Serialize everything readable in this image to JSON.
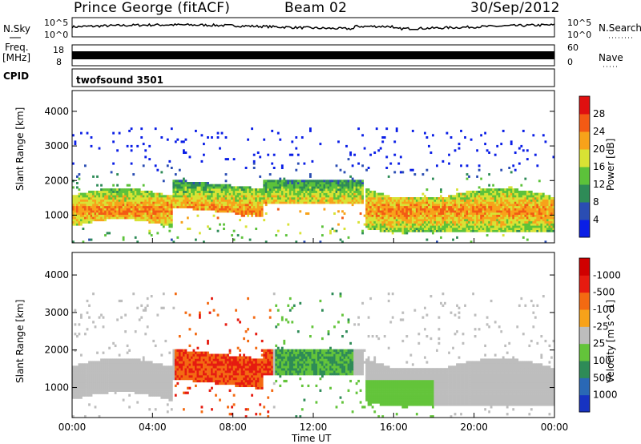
{
  "header": {
    "station": "Prince George (fitACF)",
    "beam": "Beam 02",
    "date": "30/Sep/2012"
  },
  "top_panels": {
    "nsky_label": "N.Sky",
    "nsearch_label": "N.Search",
    "nave_label": "Nave",
    "freq_label_1": "Freq.",
    "freq_label_2": "[MHz]",
    "cpid_label": "CPID",
    "cpid_value": "twofsound 3501",
    "nsky_ticks": [
      "10^5",
      "10^0"
    ],
    "nsearch_ticks": [
      "10^5",
      "10^0"
    ],
    "freq_ticks": [
      "18",
      "8"
    ],
    "nave_ticks": [
      "60",
      "0"
    ]
  },
  "chart_data": [
    {
      "type": "heatmap",
      "title": "",
      "ylabel": "Slant Range [km]",
      "xlabel": "",
      "x_ticks": [
        "00:00",
        "04:00",
        "08:00",
        "12:00",
        "16:00",
        "20:00",
        "00:00"
      ],
      "y_ticks": [
        1000,
        2000,
        3000,
        4000
      ],
      "ylim": [
        200,
        4600
      ],
      "xlim_hours": [
        0,
        24
      ],
      "colorbar": {
        "label": "Power [dB]",
        "ticks": [
          4,
          8,
          12,
          16,
          20,
          24,
          28
        ],
        "colors": [
          "#0a1ee6",
          "#2a4db3",
          "#2e8b57",
          "#5cc23a",
          "#d8e234",
          "#f7a21a",
          "#f35a14",
          "#e01010"
        ]
      }
    },
    {
      "type": "heatmap",
      "title": "",
      "ylabel": "Slant Range [km]",
      "xlabel": "Time UT",
      "x_ticks": [
        "00:00",
        "04:00",
        "08:00",
        "12:00",
        "16:00",
        "20:00",
        "00:00"
      ],
      "y_ticks": [
        1000,
        2000,
        3000,
        4000
      ],
      "ylim": [
        200,
        4600
      ],
      "xlim_hours": [
        0,
        24
      ],
      "colorbar": {
        "label": "Velocity [m s^-1]",
        "ticks": [
          "1000",
          "500",
          "100",
          "25",
          "-25",
          "-100",
          "-500",
          "-1000"
        ],
        "colors": [
          "#1733c2",
          "#2a68b5",
          "#2e8b57",
          "#63c43a",
          "#bdbdbd",
          "#f7a21a",
          "#f36a12",
          "#e61b10",
          "#d00000"
        ]
      }
    }
  ]
}
